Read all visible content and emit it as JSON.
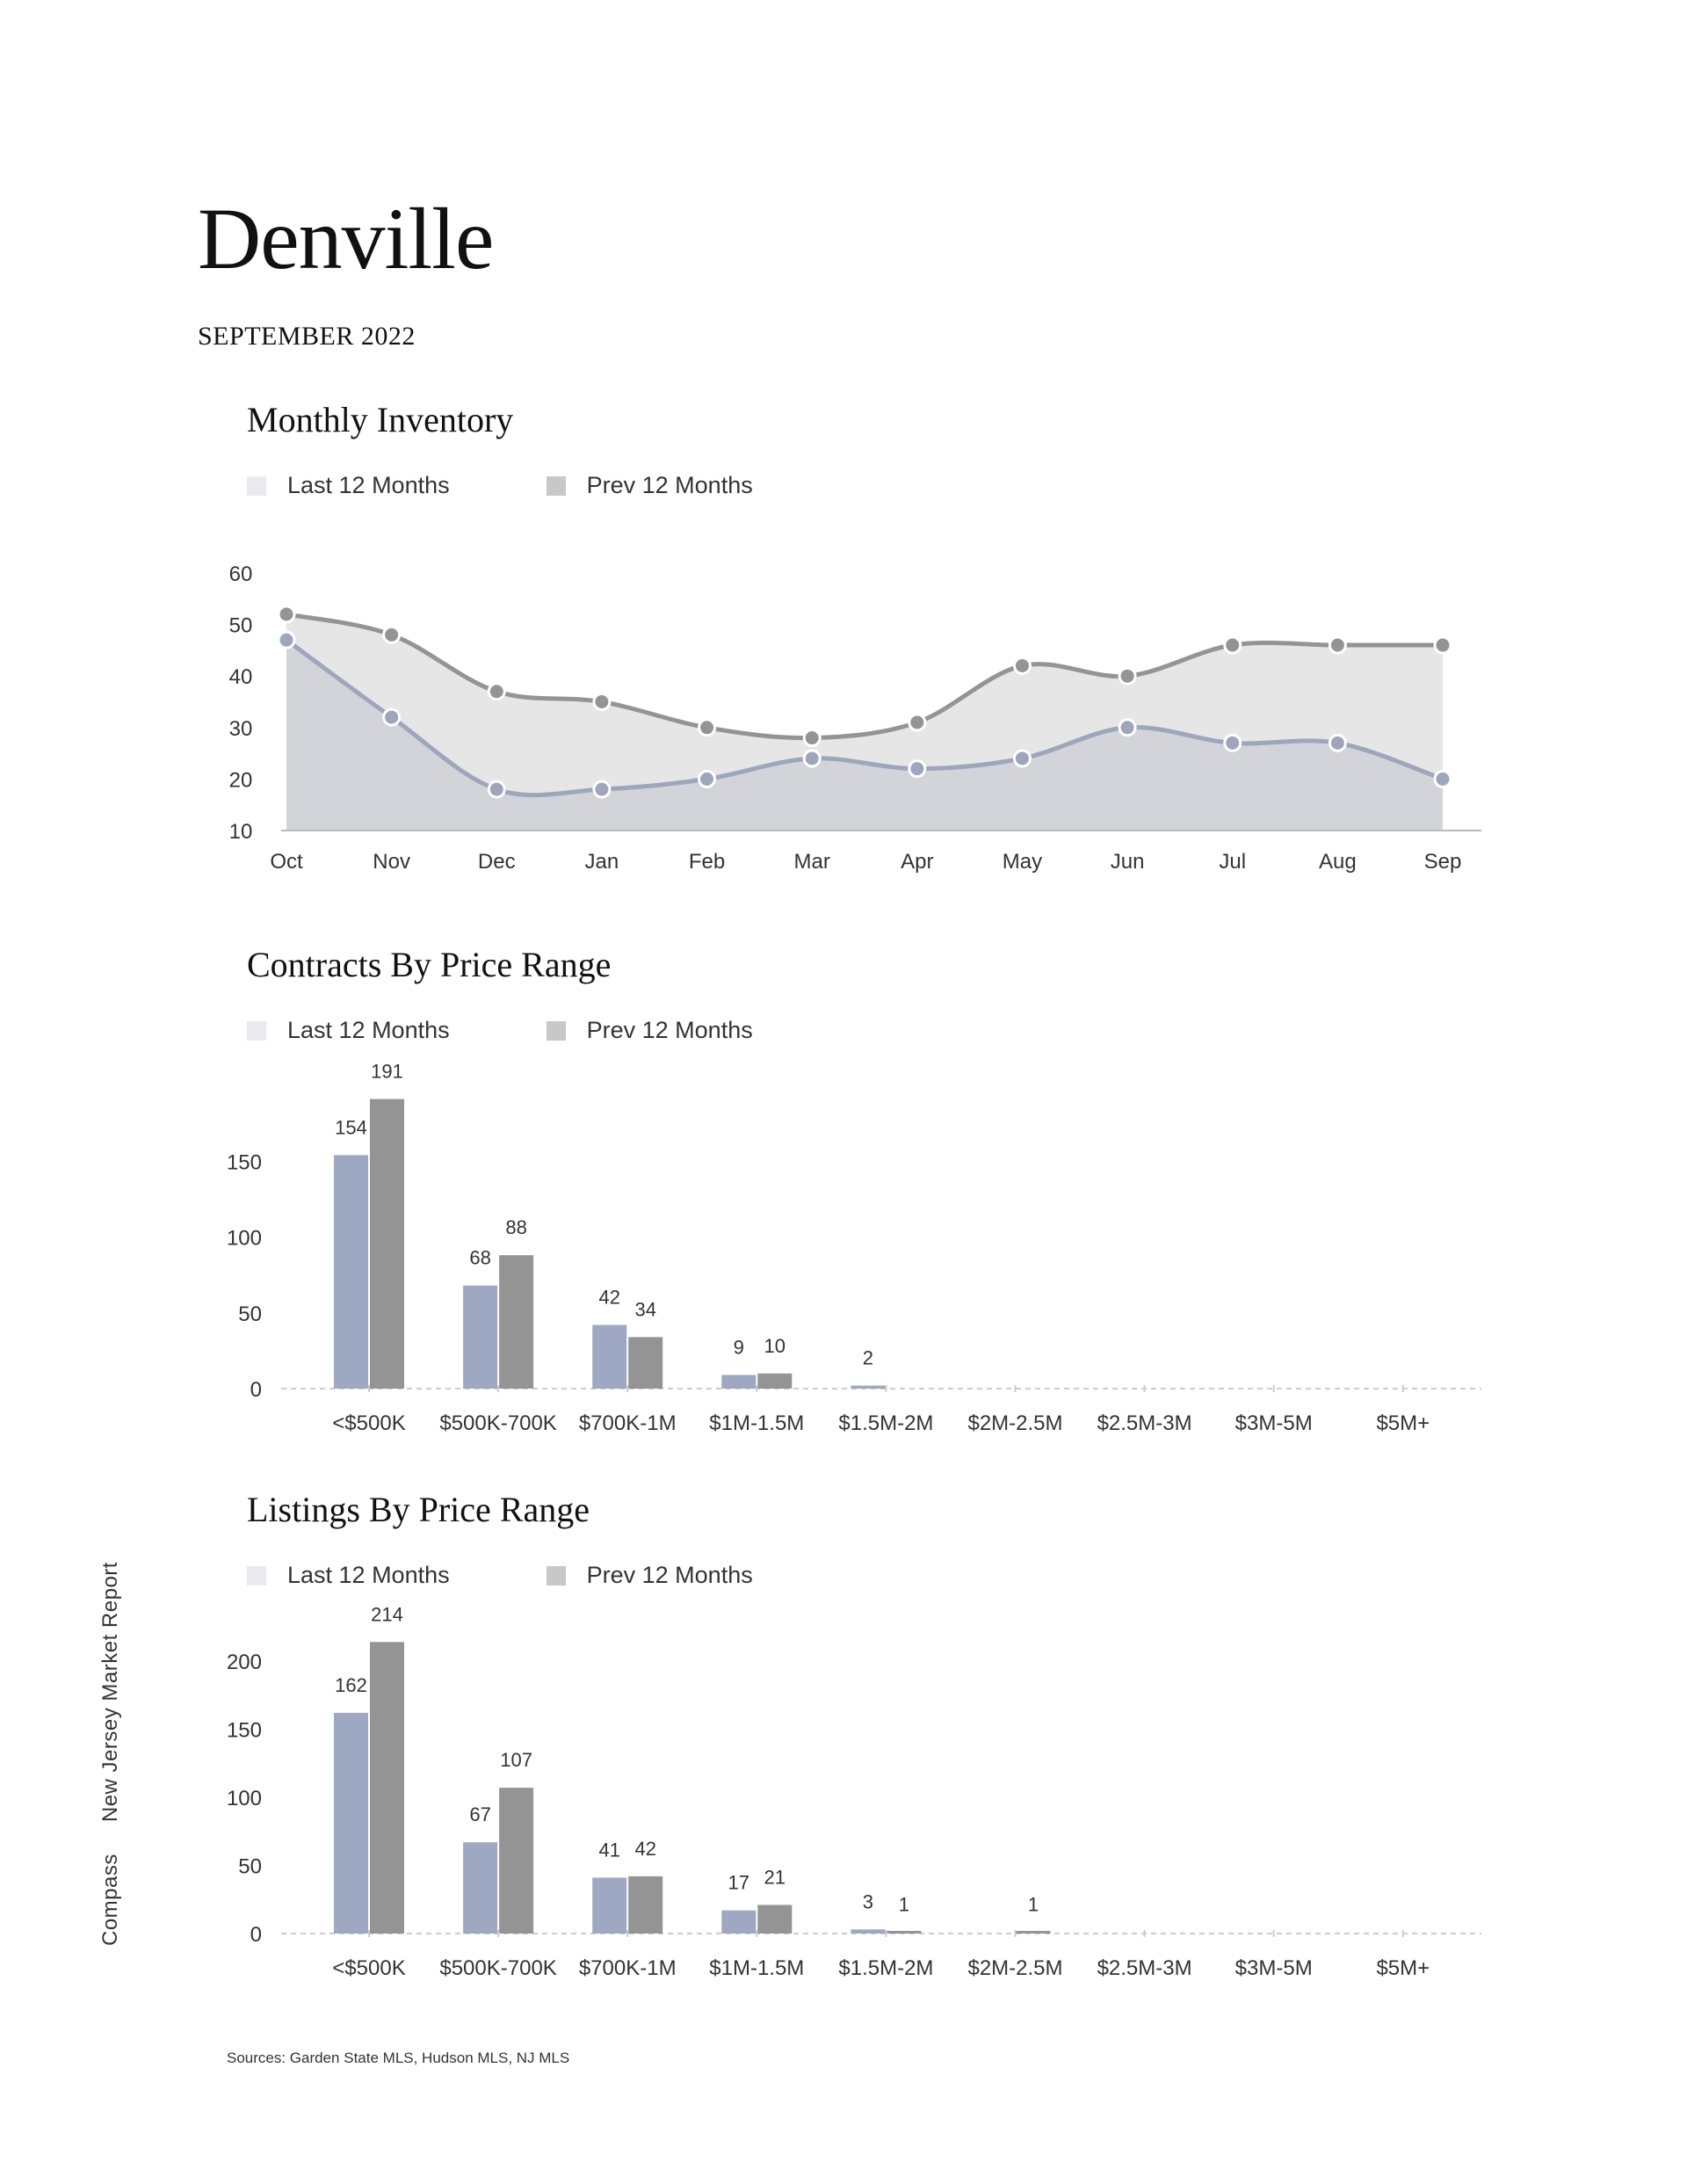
{
  "header": {
    "title": "Denville",
    "subtitle": "SEPTEMBER 2022"
  },
  "legend": {
    "last": "Last 12 Months",
    "prev": "Prev 12 Months"
  },
  "colors": {
    "last_area": "#d3d4d9",
    "prev_area": "#e6e6e6",
    "last_line": "#9ea6bc",
    "prev_line": "#949494",
    "last_bar": "#9ea8c2",
    "prev_bar": "#949494",
    "legend_last": "#e8eaee",
    "legend_prev": "#c8c8c8"
  },
  "side_label": {
    "left": "Compass",
    "right": "New Jersey Market Report"
  },
  "footer": {
    "sources": "Sources: Garden State MLS, Hudson MLS, NJ MLS"
  },
  "chart_data": [
    {
      "title": "Monthly Inventory",
      "type": "area",
      "categories": [
        "Oct",
        "Nov",
        "Dec",
        "Jan",
        "Feb",
        "Mar",
        "Apr",
        "May",
        "Jun",
        "Jul",
        "Aug",
        "Sep"
      ],
      "yticks": [
        10,
        20,
        30,
        40,
        50,
        60
      ],
      "series": [
        {
          "name": "Last 12 Months",
          "values": [
            47,
            32,
            18,
            18,
            20,
            24,
            22,
            24,
            30,
            27,
            27,
            20
          ]
        },
        {
          "name": "Prev 12 Months",
          "values": [
            52,
            48,
            37,
            35,
            30,
            28,
            31,
            42,
            40,
            46,
            46,
            46
          ]
        }
      ]
    },
    {
      "title": "Contracts By Price Range",
      "type": "bar",
      "categories": [
        "<$500K",
        "$500K-700K",
        "$700K-1M",
        "$1M-1.5M",
        "$1.5M-2M",
        "$2M-2.5M",
        "$2.5M-3M",
        "$3M-5M",
        "$5M+"
      ],
      "yticks": [
        0,
        50,
        100,
        150
      ],
      "series": [
        {
          "name": "Last 12 Months",
          "values": [
            154,
            68,
            42,
            9,
            2,
            0,
            0,
            0,
            0
          ],
          "labels": [
            "154",
            "68",
            "42",
            "9",
            "2",
            "",
            "",
            "",
            ""
          ]
        },
        {
          "name": "Prev 12 Months",
          "values": [
            191,
            88,
            34,
            10,
            0,
            0,
            0,
            0,
            0
          ],
          "labels": [
            "191",
            "88",
            "34",
            "10",
            "",
            "",
            "",
            "",
            ""
          ]
        }
      ]
    },
    {
      "title": "Listings By Price Range",
      "type": "bar",
      "categories": [
        "<$500K",
        "$500K-700K",
        "$700K-1M",
        "$1M-1.5M",
        "$1.5M-2M",
        "$2M-2.5M",
        "$2.5M-3M",
        "$3M-5M",
        "$5M+"
      ],
      "yticks": [
        0,
        50,
        100,
        150,
        200
      ],
      "series": [
        {
          "name": "Last 12 Months",
          "values": [
            162,
            67,
            41,
            17,
            3,
            0,
            0,
            0,
            0
          ],
          "labels": [
            "162",
            "67",
            "41",
            "17",
            "3",
            "",
            "",
            "",
            ""
          ]
        },
        {
          "name": "Prev 12 Months",
          "values": [
            214,
            107,
            42,
            21,
            1,
            1,
            0,
            0,
            0
          ],
          "labels": [
            "214",
            "107",
            "42",
            "21",
            "1",
            "1",
            "",
            "",
            ""
          ]
        }
      ]
    }
  ]
}
